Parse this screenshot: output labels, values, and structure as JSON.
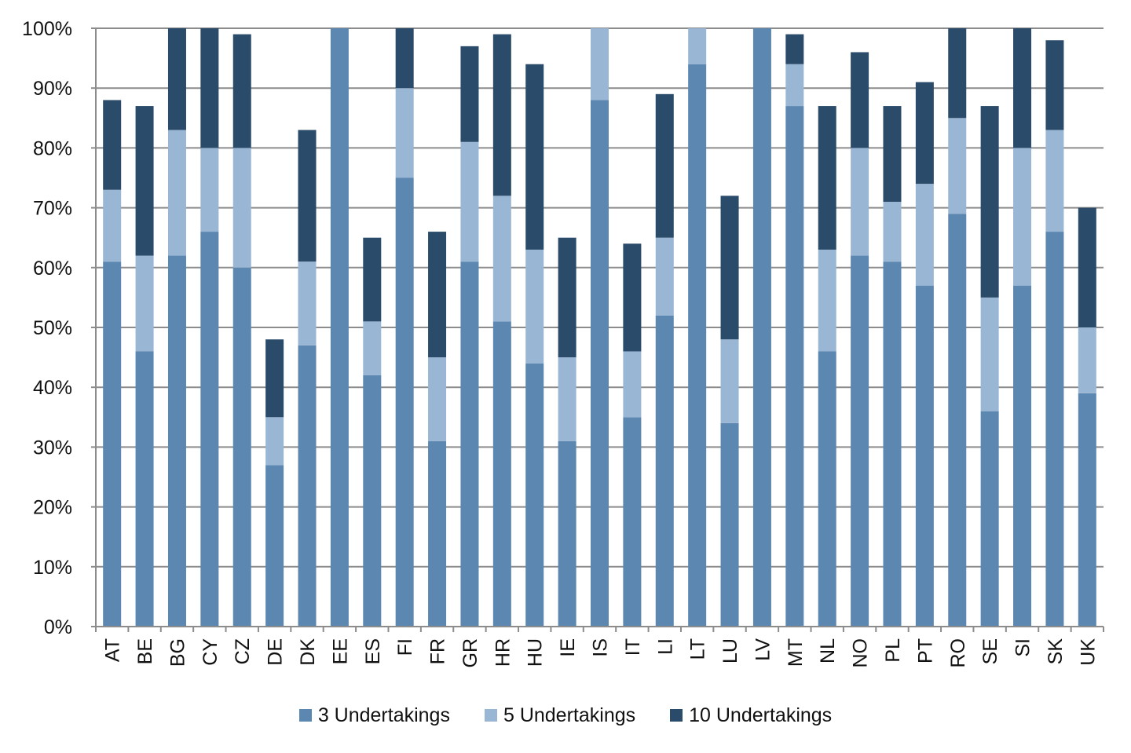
{
  "chart_data": {
    "type": "bar",
    "stacked": true,
    "categories": [
      "AT",
      "BE",
      "BG",
      "CY",
      "CZ",
      "DE",
      "DK",
      "EE",
      "ES",
      "FI",
      "FR",
      "GR",
      "HR",
      "HU",
      "IE",
      "IS",
      "IT",
      "LI",
      "LT",
      "LU",
      "LV",
      "MT",
      "NL",
      "NO",
      "PL",
      "PT",
      "RO",
      "SE",
      "SI",
      "SK",
      "UK"
    ],
    "series": [
      {
        "name": "3 Undertakings",
        "color": "#5b87b1",
        "values": [
          61,
          46,
          62,
          66,
          60,
          27,
          47,
          100,
          42,
          75,
          31,
          61,
          51,
          44,
          31,
          88,
          35,
          52,
          94,
          34,
          100,
          87,
          46,
          62,
          61,
          57,
          69,
          36,
          57,
          66,
          39
        ]
      },
      {
        "name": "5 Undertakings",
        "color": "#9ab6d5",
        "values": [
          12,
          16,
          21,
          14,
          20,
          8,
          14,
          0,
          9,
          15,
          14,
          20,
          21,
          19,
          14,
          12,
          11,
          13,
          6,
          14,
          0,
          7,
          17,
          18,
          10,
          17,
          16,
          19,
          23,
          17,
          11
        ]
      },
      {
        "name": "10 Undertakings",
        "color": "#2b4b6a",
        "values": [
          15,
          25,
          17,
          20,
          19,
          13,
          22,
          0,
          14,
          10,
          21,
          16,
          27,
          31,
          20,
          0,
          18,
          24,
          0,
          24,
          0,
          5,
          24,
          16,
          16,
          17,
          15,
          32,
          20,
          15,
          20
        ]
      }
    ],
    "y_ticks": [
      "0%",
      "10%",
      "20%",
      "30%",
      "40%",
      "50%",
      "60%",
      "70%",
      "80%",
      "90%",
      "100%"
    ],
    "ylim": [
      0,
      100
    ],
    "grid": true,
    "legend_position": "bottom"
  }
}
